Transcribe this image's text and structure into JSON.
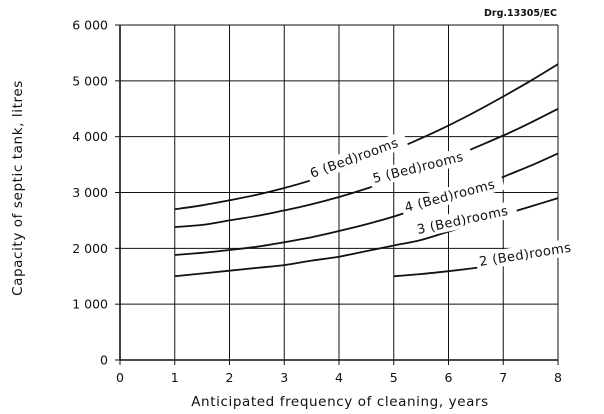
{
  "drawing_ref": "Drg.13305/EC",
  "chart_data": {
    "type": "line",
    "title": "",
    "xlabel": "Anticipated frequency of cleaning, years",
    "ylabel": "Capacity of septic tank, litres",
    "xlim": [
      0,
      8
    ],
    "ylim": [
      0,
      6000
    ],
    "xticks": [
      0,
      1,
      2,
      3,
      4,
      5,
      6,
      7,
      8
    ],
    "yticks": [
      0,
      1000,
      2000,
      3000,
      4000,
      5000,
      6000
    ],
    "xtick_labels": [
      "0",
      "1",
      "2",
      "3",
      "4",
      "5",
      "6",
      "7",
      "8"
    ],
    "ytick_labels": [
      "0",
      "1 000",
      "2 000",
      "3 000",
      "4 000",
      "5 000",
      "6 000"
    ],
    "grid": true,
    "series": [
      {
        "name": "2 (Bed)rooms",
        "x": [
          5,
          5.5,
          6,
          6.5,
          7,
          7.5,
          8
        ],
        "y": [
          1500,
          1540,
          1590,
          1650,
          1720,
          1800,
          1890
        ]
      },
      {
        "name": "3 (Bed)rooms",
        "x": [
          1,
          1.5,
          2,
          2.5,
          3,
          3.5,
          4,
          4.5,
          5,
          5.5,
          6,
          6.5,
          7,
          7.5,
          8
        ],
        "y": [
          1500,
          1550,
          1600,
          1650,
          1700,
          1780,
          1850,
          1950,
          2050,
          2150,
          2300,
          2450,
          2600,
          2750,
          2900
        ]
      },
      {
        "name": "4 (Bed)rooms",
        "x": [
          1,
          1.5,
          2,
          2.5,
          3,
          3.5,
          4,
          4.5,
          5,
          5.5,
          6,
          6.5,
          7,
          7.5,
          8
        ],
        "y": [
          1880,
          1920,
          1970,
          2030,
          2110,
          2200,
          2310,
          2430,
          2570,
          2730,
          2900,
          3080,
          3280,
          3480,
          3700
        ]
      },
      {
        "name": "5 (Bed)rooms",
        "x": [
          1,
          1.5,
          2,
          2.5,
          3,
          3.5,
          4,
          4.5,
          5,
          5.5,
          6,
          6.5,
          7,
          7.5,
          8
        ],
        "y": [
          2380,
          2420,
          2500,
          2580,
          2680,
          2790,
          2920,
          3070,
          3230,
          3410,
          3600,
          3810,
          4020,
          4250,
          4500
        ]
      },
      {
        "name": "6 (Bed)rooms",
        "x": [
          1,
          1.5,
          2,
          2.5,
          3,
          3.5,
          4,
          4.5,
          5,
          5.5,
          6,
          6.5,
          7,
          7.5,
          8
        ],
        "y": [
          2700,
          2770,
          2860,
          2960,
          3080,
          3220,
          3380,
          3560,
          3760,
          3970,
          4200,
          4450,
          4720,
          5000,
          5300
        ]
      }
    ]
  }
}
